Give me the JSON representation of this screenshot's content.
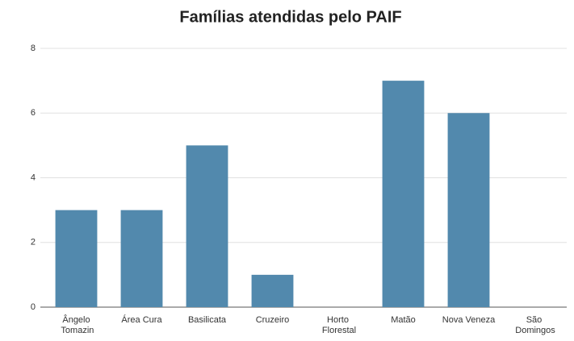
{
  "chart_data": {
    "type": "bar",
    "title": "Famílias atendidas pelo PAIF",
    "categories": [
      "Ângelo Tomazin",
      "Área Cura",
      "Basilicata",
      "Cruzeiro",
      "Horto Florestal",
      "Matão",
      "Nova Veneza",
      "São Domingos"
    ],
    "values": [
      3,
      3,
      5,
      1,
      0,
      7,
      6,
      0
    ],
    "color": "#5289ad",
    "ylim": [
      0,
      8
    ],
    "yticks": [
      0,
      2,
      4,
      6,
      8
    ],
    "grid": true
  }
}
